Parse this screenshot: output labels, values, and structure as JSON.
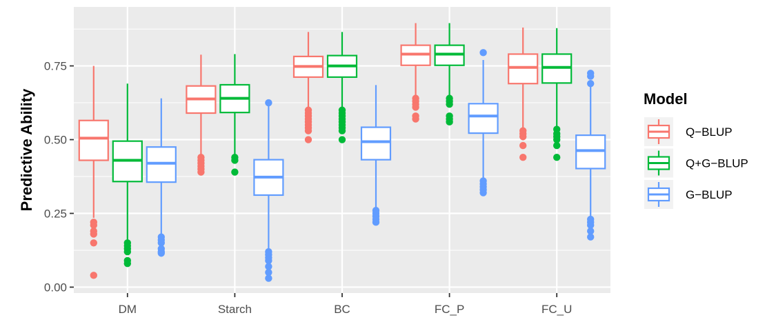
{
  "chart_data": {
    "type": "boxplot",
    "title": "",
    "xlabel": "",
    "ylabel": "Predictive Ability",
    "ylim": [
      -0.02,
      0.95
    ],
    "yticks": [
      0.0,
      0.25,
      0.5,
      0.75
    ],
    "ytick_labels": [
      "0.00",
      "0.25",
      "0.50",
      "0.75"
    ],
    "categories": [
      "DM",
      "Starch",
      "BC",
      "FC_P",
      "FC_U"
    ],
    "grid": true,
    "legend": {
      "title": "Model",
      "position": "right",
      "entries": [
        "Q−BLUP",
        "Q+G−BLUP",
        "G−BLUP"
      ]
    },
    "series": [
      {
        "name": "Q−BLUP",
        "color": "#F8766D",
        "boxes": [
          {
            "q1": 0.43,
            "median": 0.505,
            "q3": 0.565,
            "whisker_low": 0.235,
            "whisker_high": 0.75,
            "outliers": [
              0.22,
              0.21,
              0.19,
              0.18,
              0.15,
              0.04
            ]
          },
          {
            "q1": 0.59,
            "median": 0.638,
            "q3": 0.682,
            "whisker_low": 0.45,
            "whisker_high": 0.788,
            "outliers": [
              0.44,
              0.43,
              0.42,
              0.41,
              0.4,
              0.39
            ]
          },
          {
            "q1": 0.712,
            "median": 0.748,
            "q3": 0.782,
            "whisker_low": 0.61,
            "whisker_high": 0.865,
            "outliers": [
              0.6,
              0.59,
              0.58,
              0.57,
              0.56,
              0.55,
              0.54,
              0.53,
              0.5
            ]
          },
          {
            "q1": 0.752,
            "median": 0.79,
            "q3": 0.82,
            "whisker_low": 0.65,
            "whisker_high": 0.895,
            "outliers": [
              0.64,
              0.63,
              0.62,
              0.61,
              0.58,
              0.57
            ]
          },
          {
            "q1": 0.69,
            "median": 0.745,
            "q3": 0.79,
            "whisker_low": 0.54,
            "whisker_high": 0.88,
            "outliers": [
              0.53,
              0.52,
              0.51,
              0.48,
              0.44
            ]
          }
        ]
      },
      {
        "name": "Q+G−BLUP",
        "color": "#00BA38",
        "boxes": [
          {
            "q1": 0.358,
            "median": 0.43,
            "q3": 0.495,
            "whisker_low": 0.155,
            "whisker_high": 0.69,
            "outliers": [
              0.15,
              0.14,
              0.13,
              0.12,
              0.09,
              0.08
            ]
          },
          {
            "q1": 0.592,
            "median": 0.64,
            "q3": 0.686,
            "whisker_low": 0.445,
            "whisker_high": 0.79,
            "outliers": [
              0.44,
              0.43,
              0.39
            ]
          },
          {
            "q1": 0.712,
            "median": 0.75,
            "q3": 0.785,
            "whisker_low": 0.61,
            "whisker_high": 0.865,
            "outliers": [
              0.6,
              0.59,
              0.58,
              0.57,
              0.56,
              0.55,
              0.54,
              0.53,
              0.5
            ]
          },
          {
            "q1": 0.752,
            "median": 0.79,
            "q3": 0.82,
            "whisker_low": 0.645,
            "whisker_high": 0.895,
            "outliers": [
              0.64,
              0.63,
              0.62,
              0.58,
              0.57,
              0.56
            ]
          },
          {
            "q1": 0.692,
            "median": 0.745,
            "q3": 0.79,
            "whisker_low": 0.54,
            "whisker_high": 0.878,
            "outliers": [
              0.535,
              0.52,
              0.51,
              0.5,
              0.48,
              0.44
            ]
          }
        ]
      },
      {
        "name": "G−BLUP",
        "color": "#619CFF",
        "boxes": [
          {
            "q1": 0.356,
            "median": 0.42,
            "q3": 0.475,
            "whisker_low": 0.18,
            "whisker_high": 0.64,
            "outliers": [
              0.17,
              0.16,
              0.15,
              0.13,
              0.12,
              0.115
            ]
          },
          {
            "q1": 0.312,
            "median": 0.373,
            "q3": 0.432,
            "whisker_low": 0.13,
            "whisker_high": 0.625,
            "outliers": [
              0.625,
              0.12,
              0.11,
              0.1,
              0.09,
              0.07,
              0.05,
              0.03
            ]
          },
          {
            "q1": 0.432,
            "median": 0.493,
            "q3": 0.542,
            "whisker_low": 0.265,
            "whisker_high": 0.685,
            "outliers": [
              0.26,
              0.25,
              0.24,
              0.23,
              0.22
            ]
          },
          {
            "q1": 0.522,
            "median": 0.58,
            "q3": 0.622,
            "whisker_low": 0.37,
            "whisker_high": 0.77,
            "outliers": [
              0.795,
              0.36,
              0.35,
              0.34,
              0.33,
              0.32
            ]
          },
          {
            "q1": 0.402,
            "median": 0.463,
            "q3": 0.515,
            "whisker_low": 0.235,
            "whisker_high": 0.685,
            "outliers": [
              0.725,
              0.715,
              0.69,
              0.23,
              0.22,
              0.21,
              0.19,
              0.17
            ]
          }
        ]
      }
    ]
  }
}
